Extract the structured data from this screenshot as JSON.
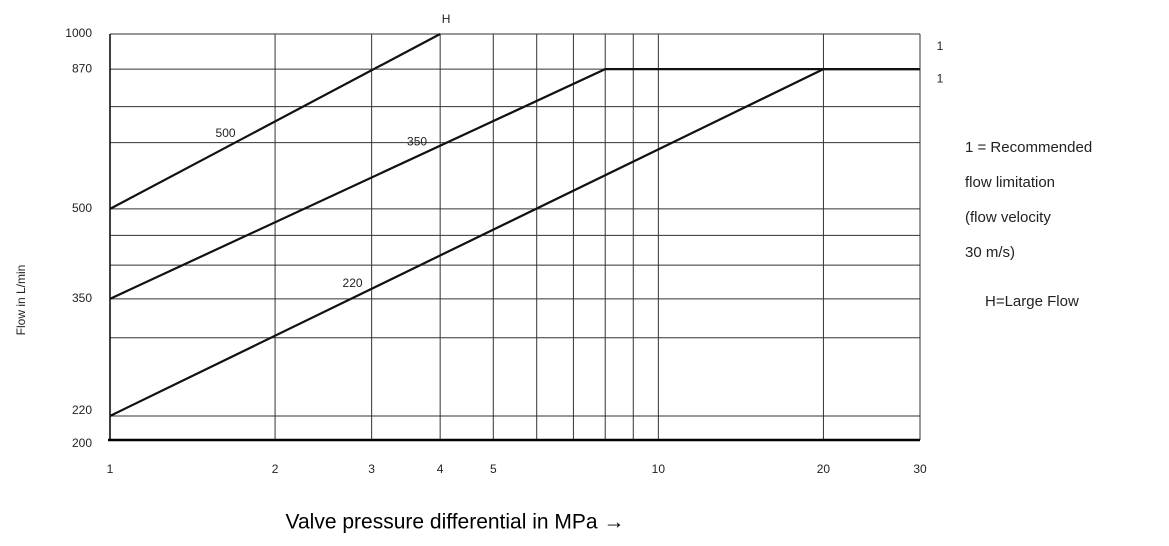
{
  "chart_data": {
    "type": "line",
    "xlabel": "Valve pressure differential in MPa →",
    "ylabel": "Flow in  L/min",
    "xscale": "log",
    "yscale": "log",
    "xlim": [
      1,
      30
    ],
    "ylim": [
      200,
      1000
    ],
    "xticks": [
      1,
      2,
      3,
      4,
      5,
      10,
      20,
      30
    ],
    "yticks": [
      200,
      220,
      350,
      500,
      870,
      1000
    ],
    "xgrid_minor": [
      6,
      7,
      8,
      9
    ],
    "ygrid_minor": [
      300,
      400,
      450,
      650,
      750
    ],
    "grid": true,
    "series": [
      {
        "name": "500",
        "color": "#111111",
        "x": [
          1,
          4
        ],
        "values": [
          500,
          1000
        ]
      },
      {
        "name": "350",
        "color": "#111111",
        "x": [
          1,
          8,
          30
        ],
        "values": [
          350,
          870,
          870
        ]
      },
      {
        "name": "220",
        "color": "#111111",
        "x": [
          1,
          20,
          30
        ],
        "values": [
          220,
          870,
          870
        ]
      }
    ],
    "annotations": [
      "H",
      "1",
      "1"
    ],
    "notes": [
      "1 = Recommended",
      "flow limitation",
      "(flow velocity",
      "30 m/s)",
      "H=Large Flow"
    ]
  }
}
